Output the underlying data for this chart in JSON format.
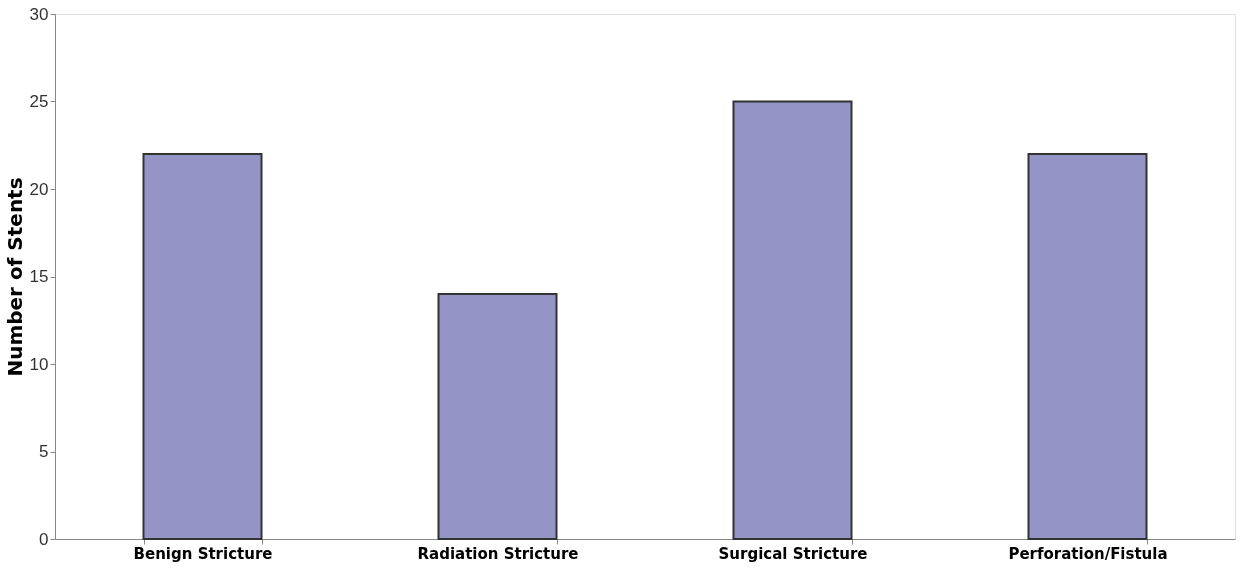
{
  "chart_data": {
    "type": "bar",
    "ylabel": "Number of Stents",
    "categories": [
      "Benign Stricture",
      "Radiation Stricture",
      "Surgical Stricture",
      "Perforation/Fistula"
    ],
    "values": [
      22,
      14,
      25,
      22
    ],
    "color": "#9494c6",
    "ylim": [
      0,
      30
    ],
    "yticks": [
      0,
      5,
      10,
      15,
      20,
      25,
      30
    ],
    "grid": false
  }
}
